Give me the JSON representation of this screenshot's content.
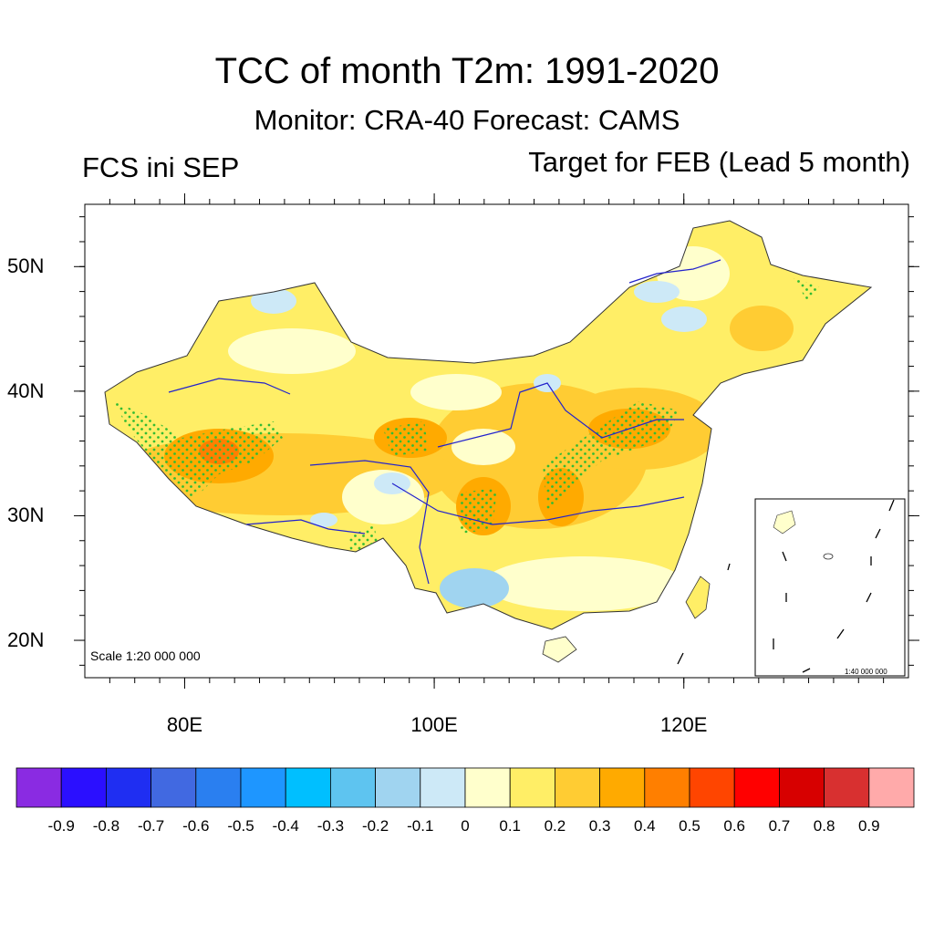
{
  "title": "TCC of month T2m: 1991-2020",
  "subtitle": "Monitor: CRA-40   Forecast: CAMS",
  "left_string": "FCS ini SEP",
  "right_string": "Target for FEB (Lead 5 month)",
  "map": {
    "lon_range": [
      72,
      138
    ],
    "lat_range": [
      17,
      55
    ],
    "lat_ticks": [
      {
        "value": 20,
        "label": "20N"
      },
      {
        "value": 30,
        "label": "30N"
      },
      {
        "value": 40,
        "label": "40N"
      },
      {
        "value": 50,
        "label": "50N"
      }
    ],
    "lon_ticks": [
      {
        "value": 80,
        "label": "80E"
      },
      {
        "value": 100,
        "label": "100E"
      },
      {
        "value": 120,
        "label": "120E"
      }
    ],
    "scale_main": "Scale 1:20 000 000",
    "scale_inset": "1:40 000 000",
    "stipple_color": "#33bb33",
    "boundary_color": "#333333",
    "river_color": "#2222cc"
  },
  "colorbar": {
    "colors": [
      "#8a2be2",
      "#2b0fff",
      "#1f2ef2",
      "#4169e1",
      "#2a7ff0",
      "#1e96ff",
      "#00bfff",
      "#5ec4f0",
      "#a0d4f0",
      "#cde9f7",
      "#ffffcc",
      "#ffee66",
      "#ffcc33",
      "#ffaa00",
      "#ff7f00",
      "#ff4500",
      "#ff0000",
      "#d70000",
      "#d83030",
      "#ffaaaa"
    ],
    "labels": [
      "-0.9",
      "-0.8",
      "-0.7",
      "-0.6",
      "-0.5",
      "-0.4",
      "-0.3",
      "-0.2",
      "-0.1",
      "0",
      "0.1",
      "0.2",
      "0.3",
      "0.4",
      "0.5",
      "0.6",
      "0.7",
      "0.8",
      "0.9"
    ]
  }
}
